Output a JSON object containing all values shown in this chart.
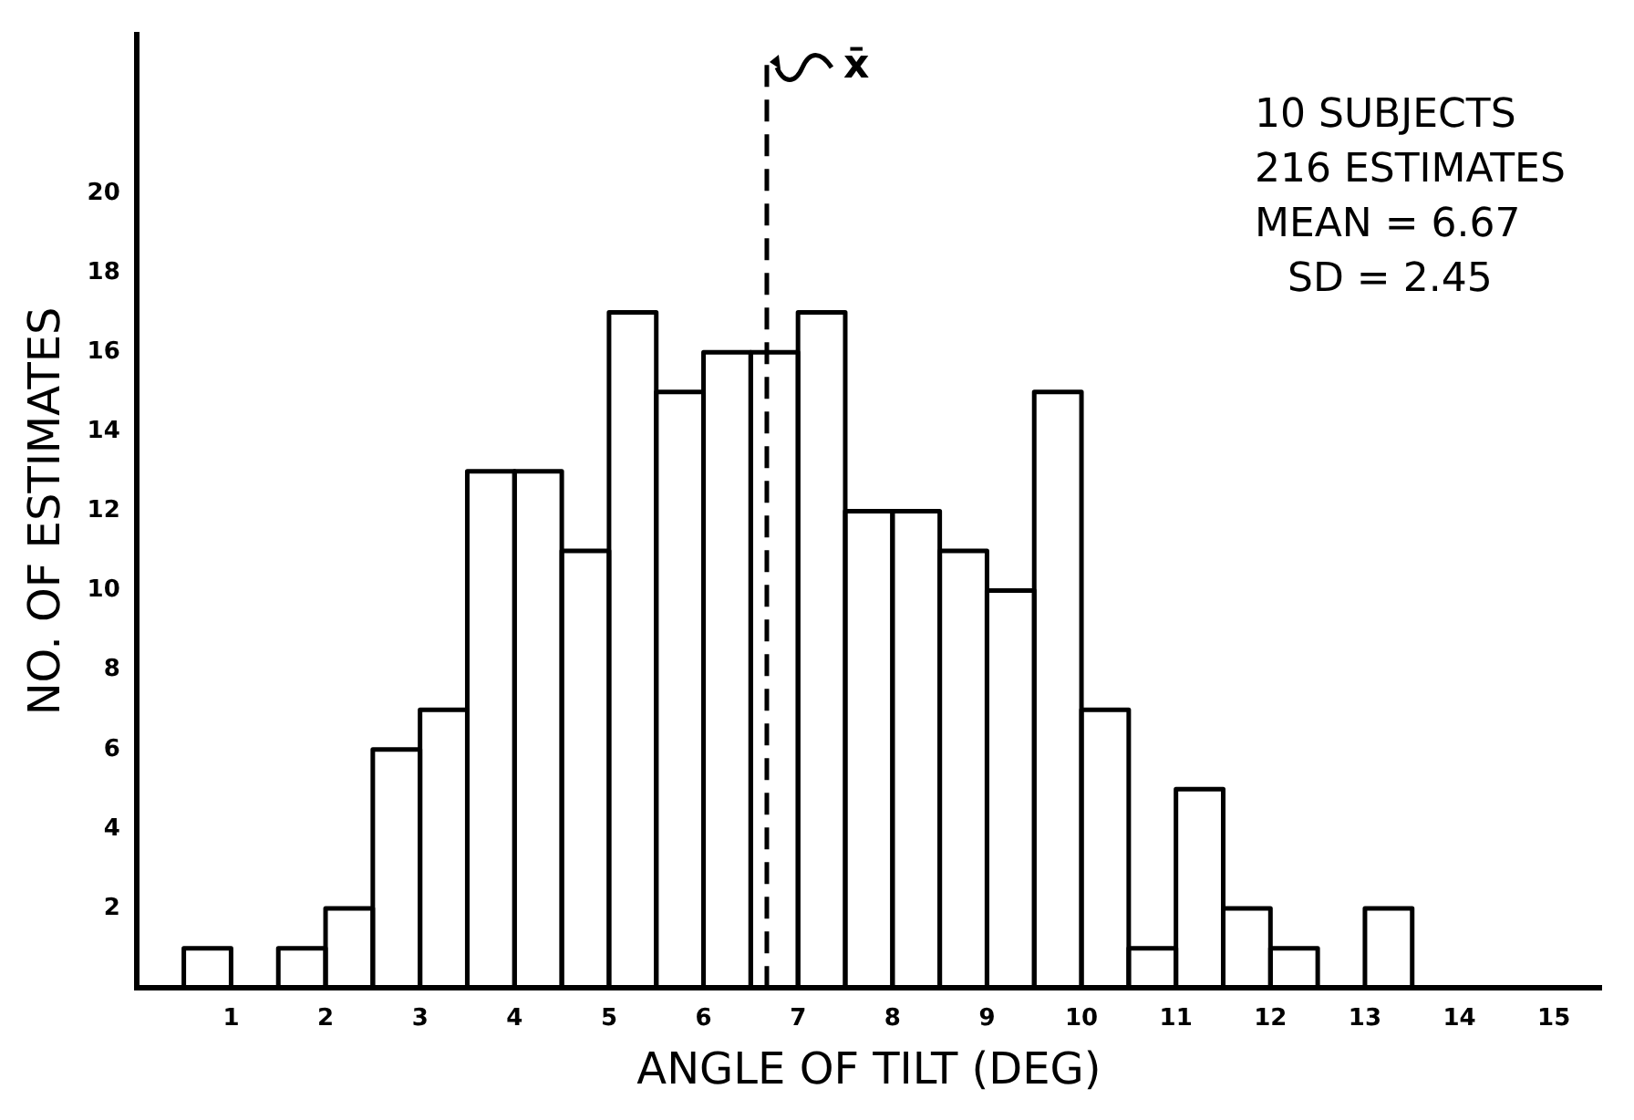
{
  "chart_data": {
    "type": "histogram",
    "xlabel": "ANGLE OF TILT (DEG)",
    "ylabel": "NO. OF ESTIMATES",
    "bins": [
      0.5,
      1,
      1.5,
      2,
      2.5,
      3,
      3.5,
      4,
      4.5,
      5,
      5.5,
      6,
      6.5,
      7,
      7.5,
      8,
      8.5,
      9,
      9.5,
      10,
      10.5,
      11,
      11.5,
      12,
      12.5,
      13,
      13.5
    ],
    "values": [
      1,
      0,
      1,
      2,
      6,
      7,
      13,
      13,
      11,
      17,
      15,
      16,
      16,
      17,
      12,
      12,
      11,
      10,
      15,
      7,
      1,
      5,
      2,
      1,
      0,
      2
    ],
    "color": "#000000",
    "xlim": [
      0,
      15.5
    ],
    "xticks": [
      1,
      2,
      3,
      4,
      5,
      6,
      7,
      8,
      9,
      10,
      11,
      12,
      13,
      14,
      15
    ],
    "ylim": [
      0,
      24
    ],
    "yticks": [
      2,
      4,
      6,
      8,
      10,
      12,
      14,
      16,
      18,
      20
    ],
    "grid": false,
    "legend": false,
    "ref_lines": [
      {
        "axis": "x",
        "value": 6.67,
        "label": "x̄",
        "line_style": "dashed",
        "color": "#000000"
      }
    ],
    "annotations": [
      "10 SUBJECTS",
      "216 ESTIMATES",
      "MEAN = 6.67",
      "SD = 2.45"
    ]
  }
}
